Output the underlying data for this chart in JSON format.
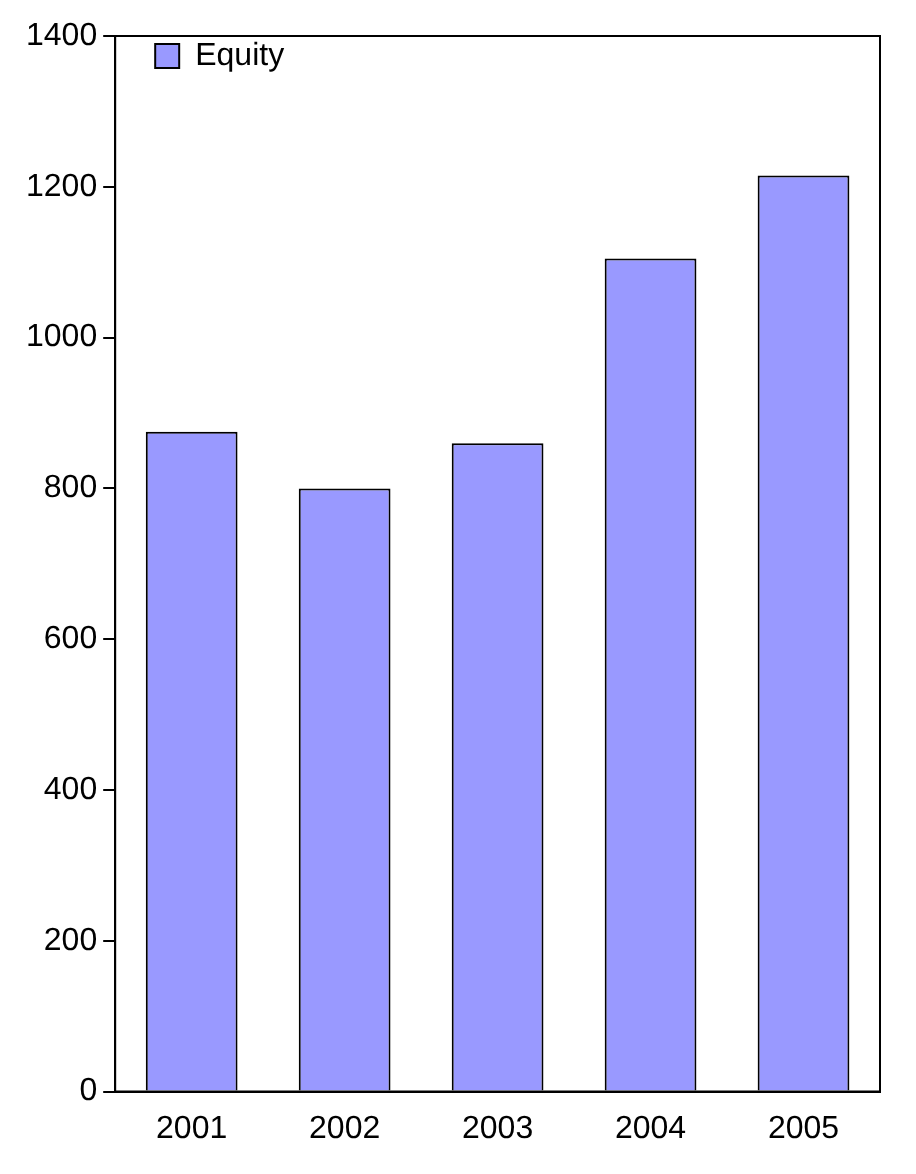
{
  "chart_data": {
    "type": "bar",
    "categories": [
      "2001",
      "2002",
      "2003",
      "2004",
      "2005"
    ],
    "series": [
      {
        "name": "Equity",
        "color": "#9999ff",
        "values": [
          875,
          800,
          860,
          1105,
          1215
        ]
      }
    ],
    "ylim": [
      0,
      1400
    ],
    "yticks": [
      0,
      200,
      400,
      600,
      800,
      1000,
      1200,
      1400
    ],
    "grid": false,
    "legend": "top left"
  }
}
